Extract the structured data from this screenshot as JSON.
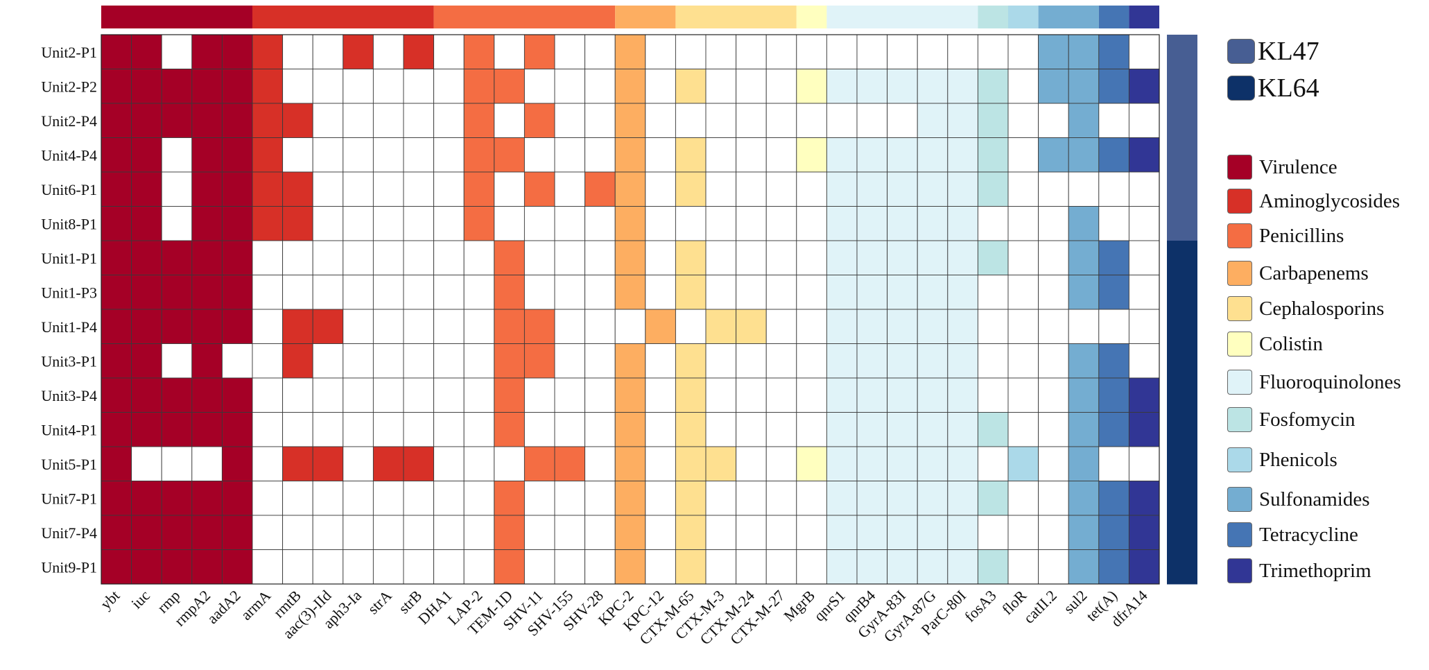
{
  "chart_data": {
    "type": "heatmap",
    "title": "",
    "rows": [
      "Unit2-P1",
      "Unit2-P2",
      "Unit2-P4",
      "Unit4-P4",
      "Unit6-P1",
      "Unit8-P1",
      "Unit1-P1",
      "Unit1-P3",
      "Unit1-P4",
      "Unit3-P1",
      "Unit3-P4",
      "Unit4-P1",
      "Unit5-P1",
      "Unit7-P1",
      "Unit7-P4",
      "Unit9-P1"
    ],
    "columns": [
      "ybt",
      "iuc",
      "rmp",
      "rmpA2",
      "aadA2",
      "armA",
      "rmtB",
      "aac(3)-IId",
      "aph3-Ia",
      "strA",
      "strB",
      "DHA1",
      "LAP-2",
      "TEM-1D",
      "SHV-11",
      "SHV-155",
      "SHV-28",
      "KPC-2",
      "KPC-12",
      "CTX-M-65",
      "CTX-M-3",
      "CTX-M-24",
      "CTX-M-27",
      "MgrB",
      "qnrS1",
      "qnrB4",
      "GyrA-83I",
      "GyrA-87G",
      "ParC-80I",
      "fosA3",
      "floR",
      "catII.2",
      "sul2",
      "tet(A)",
      "dfrA14"
    ],
    "column_category": [
      "Virulence",
      "Virulence",
      "Virulence",
      "Virulence",
      "Virulence",
      "Aminoglycosides",
      "Aminoglycosides",
      "Aminoglycosides",
      "Aminoglycosides",
      "Aminoglycosides",
      "Aminoglycosides",
      "Penicillins",
      "Penicillins",
      "Penicillins",
      "Penicillins",
      "Penicillins",
      "Penicillins",
      "Carbapenems",
      "Carbapenems",
      "Cephalosporins",
      "Cephalosporins",
      "Cephalosporins",
      "Cephalosporins",
      "Colistin",
      "Fluoroquinolones",
      "Fluoroquinolones",
      "Fluoroquinolones",
      "Fluoroquinolones",
      "Fluoroquinolones",
      "Fosfomycin",
      "Phenicols",
      "Sulfonamides",
      "Sulfonamides",
      "Tetracycline",
      "Trimethoprim"
    ],
    "presence": [
      "11011100101010100100000000000001110",
      "11111100000011000101000111111101111",
      "11111110000010100100000000011100100",
      "11011100000011000101000111111101111",
      "11011110000010101101000011111100000",
      "11011110000010000100000011111000100",
      "11111000000001000101000011111100110",
      "11111000000001000101000011111000110",
      "11111011000001100010110011111000000",
      "11010010000001100101000011111000110",
      "11111000000001000101000011111000111",
      "11111000000001000101000011111100111",
      "10001011011000110101100111111010100",
      "11111000000001000101000011111100111",
      "11111000000001000101000011111000111",
      "11111000000001000101000011111100111"
    ],
    "row_group": [
      "KL47",
      "KL47",
      "KL47",
      "KL47",
      "KL47",
      "KL47",
      "KL64",
      "KL64",
      "KL64",
      "KL64",
      "KL64",
      "KL64",
      "KL64",
      "KL64",
      "KL64",
      "KL64"
    ],
    "category_legend": [
      {
        "label": "Virulence",
        "color": "#A50026"
      },
      {
        "label": "Aminoglycosides",
        "color": "#D73027"
      },
      {
        "label": "Penicillins",
        "color": "#F46D43"
      },
      {
        "label": "Carbapenems",
        "color": "#FDAE61"
      },
      {
        "label": "Cephalosporins",
        "color": "#FEE090"
      },
      {
        "label": "Colistin",
        "color": "#FFFFBF"
      },
      {
        "label": "Fluoroquinolones",
        "color": "#E0F3F8"
      },
      {
        "label": "Fosfomycin",
        "color": "#BCE4E4"
      },
      {
        "label": "Phenicols",
        "color": "#ABD9E9"
      },
      {
        "label": "Sulfonamides",
        "color": "#74ADD1"
      },
      {
        "label": "Tetracycline",
        "color": "#4575B4"
      },
      {
        "label": "Trimethoprim",
        "color": "#313695"
      }
    ],
    "group_legend": [
      {
        "label": "KL47",
        "color": "#475E93"
      },
      {
        "label": "KL64",
        "color": "#0D3168"
      }
    ]
  }
}
